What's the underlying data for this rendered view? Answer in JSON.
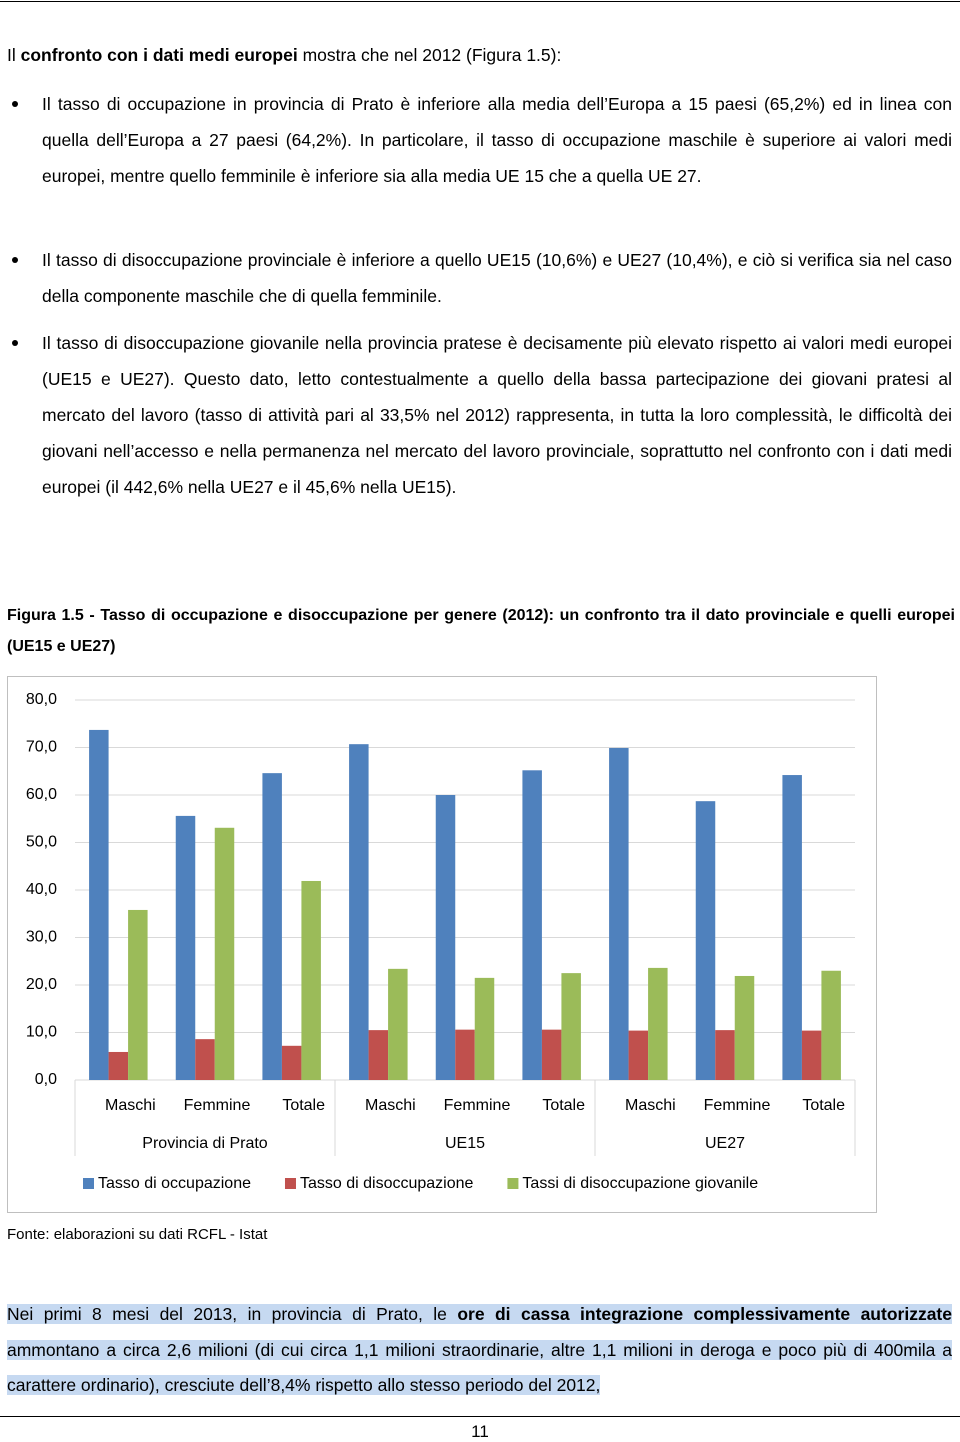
{
  "intro": [
    {
      "text": "Il ",
      "bold": false
    },
    {
      "text": "confronto con i dati medi europei",
      "bold": true
    },
    {
      "text": " mostra che nel 2012 (Figura 1.5):",
      "bold": false
    }
  ],
  "bullets": [
    "Il tasso di occupazione in provincia di Prato è inferiore alla media dell’Europa a 15 paesi (65,2%) ed in linea con quella dell’Europa a 27 paesi (64,2%). In particolare, il tasso di occupazione maschile è superiore ai valori medi europei, mentre quello femminile è inferiore sia alla media UE 15 che a quella UE 27.",
    "Il tasso di disoccupazione provinciale è inferiore a quello UE15 (10,6%) e UE27 (10,4%), e ciò si verifica sia nel caso della componente maschile che di quella femminile.",
    "Il tasso di disoccupazione giovanile nella provincia pratese è decisamente più elevato rispetto ai valori medi europei (UE15 e UE27). Questo dato, letto contestualmente a quello della bassa partecipazione dei giovani pratesi al mercato del lavoro (tasso di attività pari al 33,5% nel 2012) rappresenta, in tutta la loro complessità, le difficoltà dei giovani nell’accesso e nella permanenza nel mercato del lavoro provinciale, soprattutto nel confronto con i dati medi europei (il 442,6% nella UE27 e il 45,6% nella UE15)."
  ],
  "caption": "Figura 1.5 - Tasso di occupazione e disoccupazione per genere (2012): un confronto tra il dato provinciale e quelli europei (UE15 e UE27)",
  "chart_data": {
    "type": "bar",
    "categories": [
      "Maschi",
      "Femmine",
      "Totale",
      "Maschi",
      "Femmine",
      "Totale",
      "Maschi",
      "Femmine",
      "Totale"
    ],
    "groups": [
      "Provincia di Prato",
      "UE15",
      "UE27"
    ],
    "series": [
      {
        "name": "Tasso di occupazione",
        "color": "#4f81bd",
        "values": [
          73.7,
          55.6,
          64.6,
          70.7,
          60.0,
          65.2,
          69.9,
          58.7,
          64.2
        ]
      },
      {
        "name": "Tasso di disoccupazione",
        "color": "#c0504d",
        "values": [
          5.9,
          8.6,
          7.2,
          10.5,
          10.6,
          10.6,
          10.4,
          10.5,
          10.4
        ]
      },
      {
        "name": "Tassi di disoccupazione giovanile",
        "color": "#9bbb59",
        "values": [
          35.8,
          53.1,
          41.9,
          23.4,
          21.5,
          22.5,
          23.6,
          21.9,
          23.0
        ]
      }
    ],
    "ylim": [
      0,
      80
    ],
    "yticks": [
      {
        "value": 0,
        "label": "0,0"
      },
      {
        "value": 10,
        "label": "10,0"
      },
      {
        "value": 20,
        "label": "20,0"
      },
      {
        "value": 30,
        "label": "30,0"
      },
      {
        "value": 40,
        "label": "40,0"
      },
      {
        "value": 50,
        "label": "50,0"
      },
      {
        "value": 60,
        "label": "60,0"
      },
      {
        "value": 70,
        "label": "70,0"
      },
      {
        "value": 80,
        "label": "80,0"
      }
    ],
    "grid": true
  },
  "source": "Fonte: elaborazioni su dati RCFL - Istat",
  "closing": [
    {
      "text": "Nei primi 8 mesi del 2013, in provincia di Prato, le ",
      "bold": false
    },
    {
      "text": "ore di cassa integrazione complessivamente autorizzate",
      "bold": true
    },
    {
      "text": " ammontano a circa 2,6 milioni (di cui circa 1,1 milioni straordinarie, altre 1,1 milioni in deroga e poco più di 400mila a carattere ordinario), cresciute dell’8,4% rispetto allo stesso periodo del 2012,",
      "bold": false
    }
  ],
  "page_number": "11"
}
